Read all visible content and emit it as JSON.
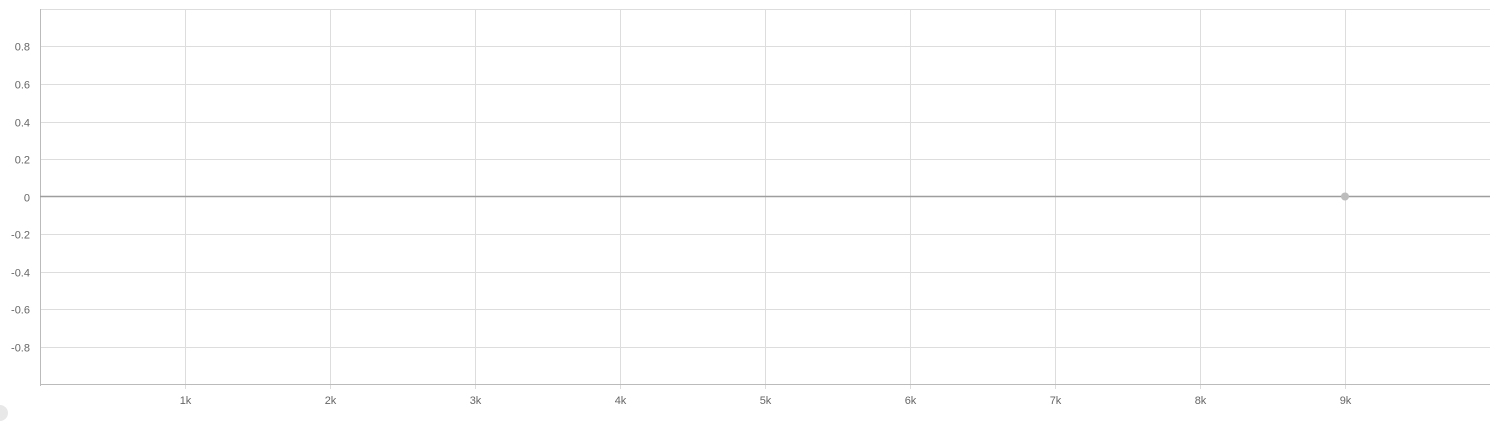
{
  "chart_data": {
    "type": "line",
    "title": "",
    "xlabel": "",
    "ylabel": "",
    "xlim": [
      0,
      10000
    ],
    "ylim": [
      -1,
      1
    ],
    "x_ticks": [
      1000,
      2000,
      3000,
      4000,
      5000,
      6000,
      7000,
      8000,
      9000
    ],
    "x_tick_labels": [
      "1k",
      "2k",
      "3k",
      "4k",
      "5k",
      "6k",
      "7k",
      "8k",
      "9k"
    ],
    "y_ticks": [
      0.8,
      0.6,
      0.4,
      0.2,
      0,
      -0.2,
      -0.4,
      -0.6,
      -0.8
    ],
    "y_tick_labels": [
      "0.8",
      "0.6",
      "0.4",
      "0.2",
      "0",
      "-0.2",
      "-0.4",
      "-0.6",
      "-0.8"
    ],
    "grid": true,
    "series": [
      {
        "color": "#bdbdbd",
        "x": [
          9000
        ],
        "y": [
          0
        ]
      }
    ],
    "colors": {
      "grid": "#dddddd",
      "axis": "#bbbbbb",
      "zero_line": "#9e9e9e",
      "tick_text": "#666666"
    }
  }
}
